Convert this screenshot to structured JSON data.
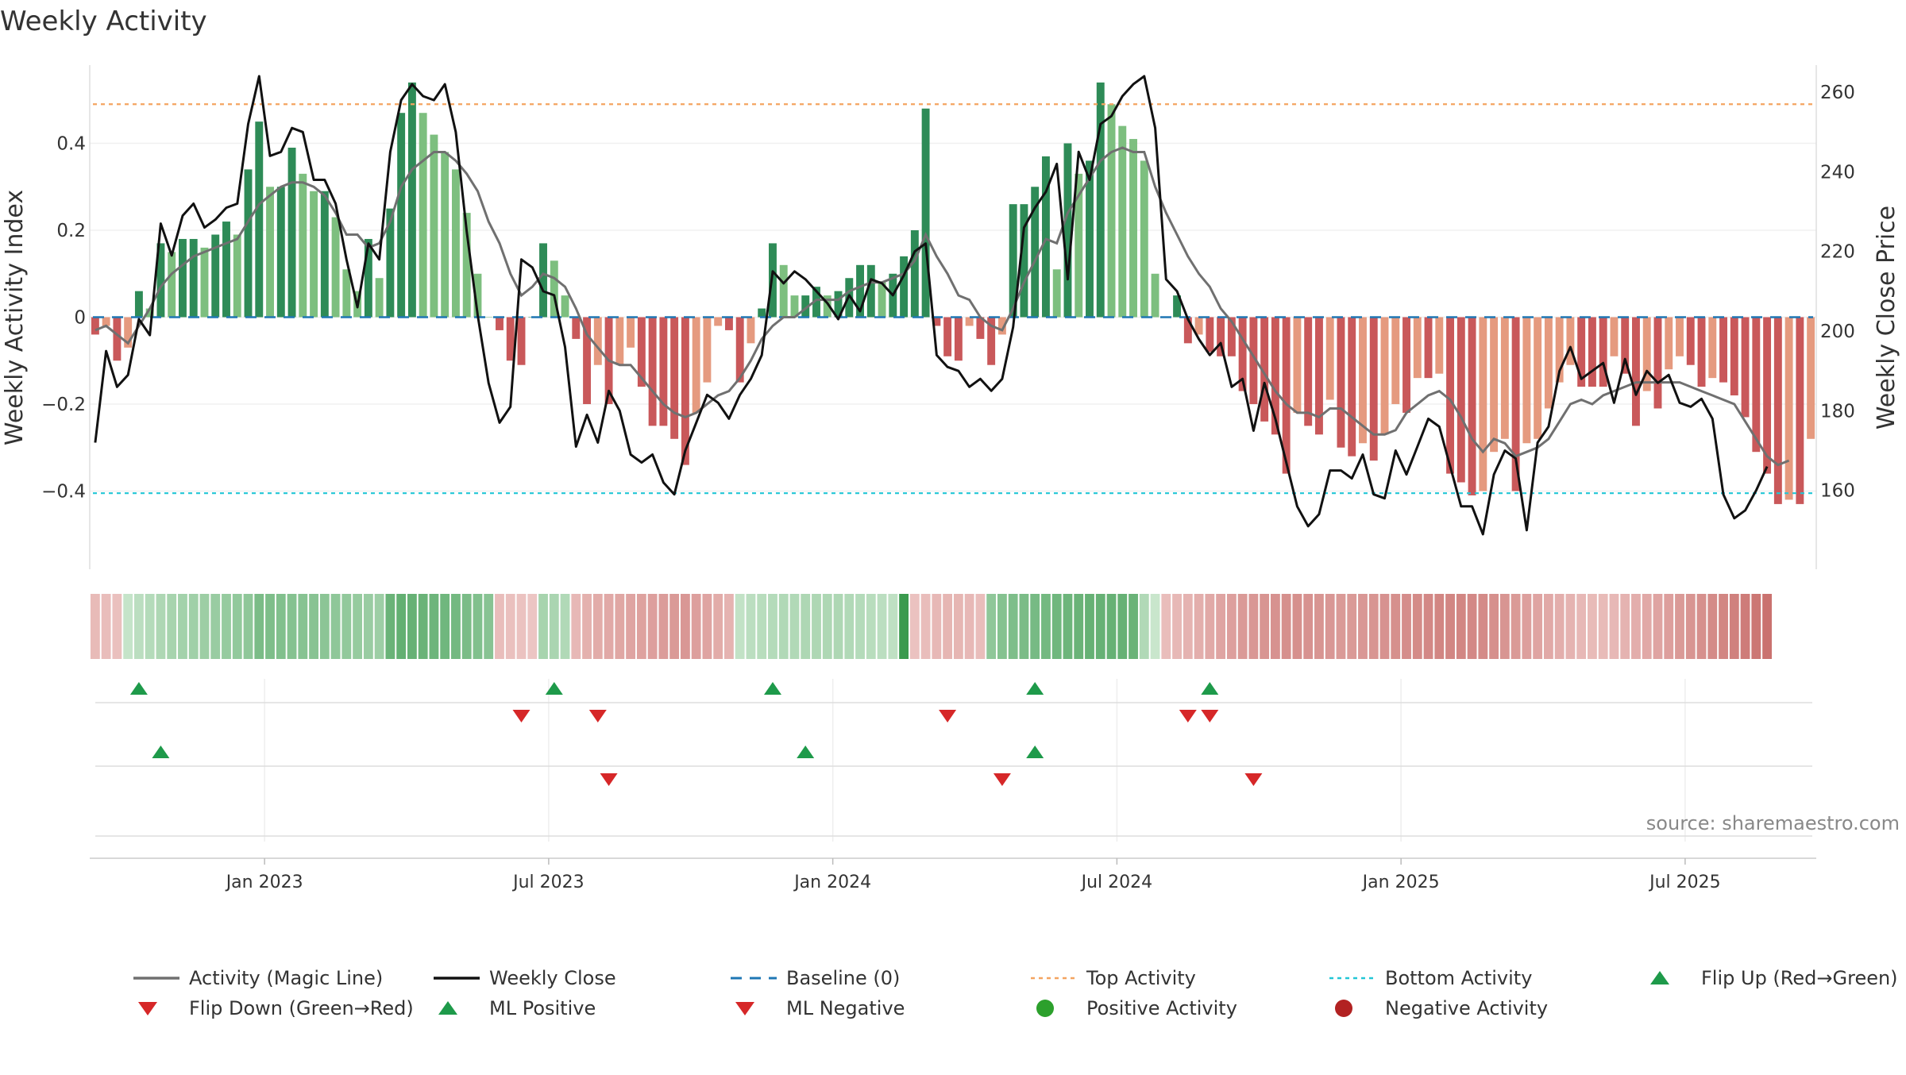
{
  "chart_data": {
    "type": "bar",
    "title": "Weekly Activity",
    "ylabel": "Weekly Activity Index",
    "y2label": "Weekly Close Price",
    "source": "source: sharemaestro.com",
    "ylim": [
      -0.58,
      0.58
    ],
    "y2lim": [
      140.2,
      266.8
    ],
    "yticks": [
      {
        "v": 0.4,
        "label": "0.4"
      },
      {
        "v": 0.2,
        "label": "0.2"
      },
      {
        "v": 0,
        "label": "0"
      },
      {
        "v": -0.2,
        "label": "−0.2"
      },
      {
        "v": -0.4,
        "label": "−0.4"
      }
    ],
    "y2ticks": [
      {
        "v": 160,
        "label": "160"
      },
      {
        "v": 180,
        "label": "180"
      },
      {
        "v": 200,
        "label": "200"
      },
      {
        "v": 220,
        "label": "220"
      },
      {
        "v": 240,
        "label": "240"
      },
      {
        "v": 260,
        "label": "260"
      }
    ],
    "xticks": [
      {
        "week": 15.5,
        "label": "Jan 2023"
      },
      {
        "week": 41.5,
        "label": "Jul 2023"
      },
      {
        "week": 67.5,
        "label": "Jan 2024"
      },
      {
        "week": 93.5,
        "label": "Jul 2024"
      },
      {
        "week": 119.5,
        "label": "Jan 2025"
      },
      {
        "week": 145.5,
        "label": "Jul 2025"
      }
    ],
    "top_activity": 0.49,
    "bottom_activity": -0.405,
    "colors": {
      "pos_dark": "#2e8b57",
      "pos_light": "#7dbf7f",
      "neg_dark": "#c9585a",
      "neg_light": "#e59a7f",
      "magic_line": "#707070",
      "close_line": "#111111",
      "baseline": "#1f77b4",
      "top": "#f4a460",
      "bottom": "#22c6d6",
      "up": "#1e9a4a",
      "down": "#d62728",
      "pos_dot": "#2ca02c",
      "neg_dot": "#b22222"
    },
    "activity": [
      -0.04,
      -0.02,
      -0.1,
      -0.07,
      0.06,
      0.02,
      0.17,
      0.15,
      0.18,
      0.18,
      0.16,
      0.19,
      0.22,
      0.19,
      0.34,
      0.45,
      0.3,
      0.3,
      0.39,
      0.33,
      0.29,
      0.29,
      0.23,
      0.11,
      0.06,
      0.18,
      0.09,
      0.25,
      0.47,
      0.54,
      0.47,
      0.42,
      0.38,
      0.34,
      0.24,
      0.1,
      0.0,
      -0.03,
      -0.1,
      -0.11,
      0.0,
      0.17,
      0.13,
      0.05,
      -0.05,
      -0.2,
      -0.11,
      -0.2,
      -0.11,
      -0.07,
      -0.16,
      -0.25,
      -0.25,
      -0.28,
      -0.34,
      -0.22,
      -0.15,
      -0.02,
      -0.03,
      -0.15,
      -0.06,
      0.02,
      0.17,
      0.12,
      0.05,
      0.05,
      0.07,
      0.05,
      0.06,
      0.09,
      0.12,
      0.12,
      0.08,
      0.1,
      0.14,
      0.2,
      0.48,
      -0.02,
      -0.09,
      -0.1,
      -0.02,
      -0.05,
      -0.11,
      -0.04,
      0.26,
      0.26,
      0.3,
      0.37,
      0.11,
      0.4,
      0.33,
      0.36,
      0.54,
      0.49,
      0.44,
      0.41,
      0.36,
      0.1,
      0.0,
      0.05,
      -0.06,
      -0.04,
      -0.08,
      -0.09,
      -0.09,
      -0.17,
      -0.2,
      -0.24,
      -0.27,
      -0.36,
      -0.22,
      -0.25,
      -0.27,
      -0.19,
      -0.3,
      -0.32,
      -0.29,
      -0.33,
      -0.27,
      -0.2,
      -0.22,
      -0.14,
      -0.14,
      -0.13,
      -0.36,
      -0.38,
      -0.41,
      -0.4,
      -0.31,
      -0.28,
      -0.4,
      -0.29,
      -0.28,
      -0.21,
      -0.15,
      -0.11,
      -0.16,
      -0.16,
      -0.16,
      -0.09,
      -0.13,
      -0.25,
      -0.17,
      -0.21,
      -0.12,
      -0.09,
      -0.11,
      -0.16,
      -0.14,
      -0.15,
      -0.18,
      -0.23,
      -0.31,
      -0.36,
      -0.43,
      -0.42,
      -0.43,
      -0.28
    ],
    "magic_line": [
      -0.03,
      -0.02,
      -0.04,
      -0.06,
      -0.02,
      0.02,
      0.07,
      0.1,
      0.12,
      0.14,
      0.15,
      0.16,
      0.17,
      0.18,
      0.22,
      0.26,
      0.28,
      0.3,
      0.31,
      0.31,
      0.3,
      0.28,
      0.24,
      0.19,
      0.19,
      0.16,
      0.17,
      0.22,
      0.3,
      0.34,
      0.36,
      0.38,
      0.38,
      0.36,
      0.33,
      0.29,
      0.22,
      0.17,
      0.1,
      0.05,
      0.07,
      0.1,
      0.09,
      0.07,
      0.02,
      -0.04,
      -0.07,
      -0.1,
      -0.11,
      -0.11,
      -0.14,
      -0.17,
      -0.2,
      -0.22,
      -0.23,
      -0.22,
      -0.2,
      -0.18,
      -0.17,
      -0.14,
      -0.1,
      -0.05,
      -0.02,
      0.0,
      0.0,
      0.02,
      0.04,
      0.04,
      0.04,
      0.06,
      0.07,
      0.08,
      0.08,
      0.09,
      0.1,
      0.13,
      0.19,
      0.14,
      0.1,
      0.05,
      0.04,
      0.0,
      -0.02,
      -0.03,
      0.02,
      0.08,
      0.13,
      0.18,
      0.17,
      0.24,
      0.28,
      0.32,
      0.36,
      0.38,
      0.39,
      0.38,
      0.38,
      0.3,
      0.24,
      0.19,
      0.14,
      0.1,
      0.07,
      0.02,
      -0.01,
      -0.05,
      -0.09,
      -0.13,
      -0.17,
      -0.2,
      -0.22,
      -0.22,
      -0.23,
      -0.21,
      -0.21,
      -0.23,
      -0.25,
      -0.27,
      -0.27,
      -0.26,
      -0.22,
      -0.2,
      -0.18,
      -0.17,
      -0.19,
      -0.23,
      -0.28,
      -0.31,
      -0.28,
      -0.29,
      -0.32,
      -0.31,
      -0.3,
      -0.28,
      -0.24,
      -0.2,
      -0.19,
      -0.2,
      -0.18,
      -0.17,
      -0.16,
      -0.15,
      -0.15,
      -0.15,
      -0.15,
      -0.15,
      -0.16,
      -0.17,
      -0.18,
      -0.19,
      -0.2,
      -0.24,
      -0.28,
      -0.32,
      -0.34,
      -0.33
    ],
    "close": [
      172,
      195,
      186,
      189,
      203,
      199,
      227,
      219,
      229,
      232,
      226,
      228,
      231,
      232,
      252,
      264,
      244,
      245,
      251,
      250,
      238,
      238,
      232,
      218,
      206,
      222,
      218,
      245,
      258,
      262,
      259,
      258,
      262,
      250,
      225,
      204,
      187,
      177,
      181,
      218,
      216,
      210,
      209,
      196,
      171,
      179,
      172,
      185,
      180,
      169,
      167,
      169,
      162,
      159,
      170,
      177,
      184,
      182,
      178,
      184,
      188,
      194,
      215,
      212,
      215,
      213,
      210,
      207,
      203,
      209,
      205,
      213,
      212,
      209,
      214,
      220,
      222,
      194,
      191,
      190,
      186,
      188,
      185,
      188,
      201,
      226,
      231,
      235,
      242,
      213,
      245,
      238,
      252,
      254,
      259,
      262,
      264,
      251,
      213,
      210,
      203,
      198,
      194,
      197,
      186,
      188,
      175,
      187,
      178,
      167,
      156,
      151,
      154,
      165,
      165,
      163,
      169,
      159,
      158,
      170,
      164,
      171,
      178,
      176,
      166,
      156,
      156,
      149,
      164,
      170,
      168,
      150,
      172,
      176,
      190,
      196,
      188,
      190,
      192,
      182,
      193,
      184,
      190,
      187,
      189,
      182,
      181,
      183,
      178,
      159,
      153,
      155,
      160,
      166
    ],
    "strip_values": [
      -0.28,
      -0.26,
      -0.24,
      0.18,
      0.24,
      0.28,
      0.32,
      0.36,
      0.38,
      0.4,
      0.42,
      0.44,
      0.46,
      0.48,
      0.5,
      0.62,
      0.6,
      0.58,
      0.56,
      0.55,
      0.54,
      0.52,
      0.5,
      0.48,
      0.46,
      0.44,
      0.42,
      0.72,
      0.76,
      0.74,
      0.72,
      0.7,
      0.68,
      0.66,
      0.62,
      0.58,
      0.54,
      -0.26,
      -0.24,
      -0.22,
      -0.2,
      0.36,
      0.34,
      0.3,
      -0.3,
      -0.36,
      -0.4,
      -0.42,
      -0.44,
      -0.46,
      -0.48,
      -0.5,
      -0.52,
      -0.54,
      -0.56,
      -0.5,
      -0.46,
      -0.4,
      -0.34,
      0.2,
      0.24,
      0.26,
      0.28,
      0.3,
      0.3,
      0.32,
      0.32,
      0.32,
      0.32,
      0.3,
      0.28,
      0.26,
      0.24,
      0.22,
      1.0,
      -0.22,
      -0.26,
      -0.3,
      -0.32,
      -0.32,
      -0.3,
      -0.26,
      0.5,
      0.56,
      0.6,
      0.62,
      0.64,
      0.66,
      0.68,
      0.7,
      0.72,
      0.74,
      0.74,
      0.74,
      0.74,
      0.72,
      0.3,
      0.16,
      -0.26,
      -0.3,
      -0.34,
      -0.38,
      -0.42,
      -0.46,
      -0.5,
      -0.54,
      -0.56,
      -0.58,
      -0.6,
      -0.62,
      -0.62,
      -0.6,
      -0.58,
      -0.56,
      -0.54,
      -0.54,
      -0.56,
      -0.58,
      -0.6,
      -0.62,
      -0.64,
      -0.66,
      -0.68,
      -0.7,
      -0.7,
      -0.7,
      -0.68,
      -0.66,
      -0.62,
      -0.58,
      -0.54,
      -0.5,
      -0.46,
      -0.42,
      -0.38,
      -0.34,
      -0.3,
      -0.28,
      -0.28,
      -0.3,
      -0.34,
      -0.38,
      -0.42,
      -0.46,
      -0.5,
      -0.54,
      -0.58,
      -0.62,
      -0.66,
      -0.7,
      -0.74,
      -0.78,
      -0.82,
      -0.86
    ],
    "flip_up": [
      4,
      42,
      62,
      86,
      102
    ],
    "flip_down": [
      39,
      46,
      78,
      100,
      102
    ],
    "ml_positive": [
      6,
      65,
      86
    ],
    "ml_negative": [
      47,
      83,
      106
    ],
    "legend": [
      {
        "label": "Activity (Magic Line)",
        "kind": "line",
        "color": "#707070"
      },
      {
        "label": "Weekly Close",
        "kind": "line",
        "color": "#111111"
      },
      {
        "label": "Baseline (0)",
        "kind": "dash",
        "color": "#1f77b4"
      },
      {
        "label": "Top Activity",
        "kind": "dot",
        "color": "#f4a460"
      },
      {
        "label": "Bottom Activity",
        "kind": "dot",
        "color": "#22c6d6"
      },
      {
        "label": "Flip Up (Red→Green)",
        "kind": "up",
        "color": "#1e9a4a"
      },
      {
        "label": "Flip Down (Green→Red)",
        "kind": "down",
        "color": "#d62728"
      },
      {
        "label": "ML Positive",
        "kind": "up",
        "color": "#1e9a4a"
      },
      {
        "label": "ML Negative",
        "kind": "down",
        "color": "#d62728"
      },
      {
        "label": "Positive Activity",
        "kind": "circle",
        "color": "#2ca02c"
      },
      {
        "label": "Negative Activity",
        "kind": "circle",
        "color": "#b22222"
      }
    ]
  }
}
